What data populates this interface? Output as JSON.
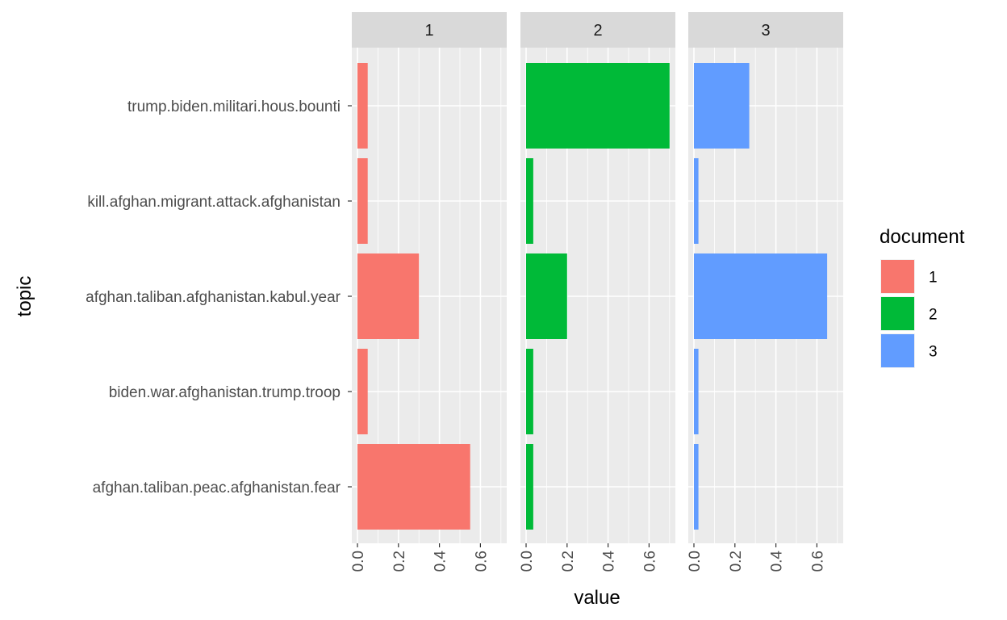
{
  "chart_data": {
    "type": "bar",
    "orientation": "horizontal",
    "facet_by": "document",
    "facets": [
      "1",
      "2",
      "3"
    ],
    "categories": [
      "trump.biden.militari.hous.bounti",
      "kill.afghan.migrant.attack.afghanistan",
      "afghan.taliban.afghanistan.kabul.year",
      "biden.war.afghanistan.trump.troop",
      "afghan.taliban.peac.afghanistan.fear"
    ],
    "series": [
      {
        "name": "1",
        "color": "#F8766D",
        "values": [
          0.05,
          0.05,
          0.3,
          0.05,
          0.55
        ]
      },
      {
        "name": "2",
        "color": "#00BA38",
        "values": [
          0.7,
          0.035,
          0.2,
          0.035,
          0.035
        ]
      },
      {
        "name": "3",
        "color": "#619CFF",
        "values": [
          0.27,
          0.022,
          0.65,
          0.022,
          0.022
        ]
      }
    ],
    "xlabel": "value",
    "ylabel": "topic",
    "xlim": [
      0,
      0.7
    ],
    "xticks": [
      "0.0",
      "0.2",
      "0.4",
      "0.6"
    ],
    "xtick_values": [
      0,
      0.2,
      0.4,
      0.6
    ],
    "legend": {
      "title": "document",
      "position": "right",
      "labels": [
        "1",
        "2",
        "3"
      ]
    },
    "grid": true
  }
}
